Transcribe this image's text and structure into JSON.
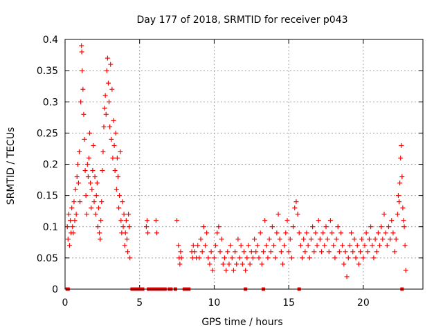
{
  "chart_data": {
    "type": "scatter",
    "title": "Day 177 of 2018, SRMTID for receiver p043",
    "xlabel": "GPS time / hours",
    "ylabel": "SRMTID / TECUs",
    "xlim": [
      0,
      24
    ],
    "ylim": [
      0,
      0.4
    ],
    "xticks": [
      0,
      5,
      10,
      15,
      20
    ],
    "xtick_labels": [
      "0",
      "5",
      "10",
      "15",
      "20"
    ],
    "yticks": [
      0,
      0.05,
      0.1,
      0.15,
      0.2,
      0.25,
      0.3,
      0.35,
      0.4
    ],
    "ytick_labels": [
      "0",
      "0.05",
      "0.1",
      "0.15",
      "0.2",
      "0.25",
      "0.3",
      "0.35",
      "0.4"
    ],
    "grid": true,
    "marker": "+",
    "color": "#ff0000",
    "series": [
      {
        "name": "SRMTID",
        "points": [
          [
            0.15,
            0.1
          ],
          [
            0.2,
            0.08
          ],
          [
            0.25,
            0.12
          ],
          [
            0.3,
            0.07
          ],
          [
            0.35,
            0.11
          ],
          [
            0.4,
            0.09
          ],
          [
            0.45,
            0.13
          ],
          [
            0.5,
            0.1
          ],
          [
            0.55,
            0.09
          ],
          [
            0.6,
            0.14
          ],
          [
            0.65,
            0.11
          ],
          [
            0.7,
            0.16
          ],
          [
            0.75,
            0.12
          ],
          [
            0.8,
            0.18
          ],
          [
            0.85,
            0.2
          ],
          [
            0.9,
            0.17
          ],
          [
            0.95,
            0.22
          ],
          [
            1.0,
            0.14
          ],
          [
            1.05,
            0.3
          ],
          [
            1.1,
            0.39
          ],
          [
            1.12,
            0.38
          ],
          [
            1.15,
            0.35
          ],
          [
            1.2,
            0.32
          ],
          [
            1.25,
            0.28
          ],
          [
            1.3,
            0.24
          ],
          [
            1.35,
            0.19
          ],
          [
            1.4,
            0.15
          ],
          [
            1.45,
            0.12
          ],
          [
            1.5,
            0.2
          ],
          [
            1.55,
            0.18
          ],
          [
            1.6,
            0.21
          ],
          [
            1.65,
            0.25
          ],
          [
            1.7,
            0.17
          ],
          [
            1.75,
            0.13
          ],
          [
            1.8,
            0.16
          ],
          [
            1.85,
            0.19
          ],
          [
            1.9,
            0.23
          ],
          [
            1.95,
            0.14
          ],
          [
            2.0,
            0.18
          ],
          [
            2.05,
            0.12
          ],
          [
            2.1,
            0.15
          ],
          [
            2.15,
            0.17
          ],
          [
            2.2,
            0.1
          ],
          [
            2.25,
            0.13
          ],
          [
            2.3,
            0.09
          ],
          [
            2.35,
            0.08
          ],
          [
            2.4,
            0.11
          ],
          [
            2.45,
            0.14
          ],
          [
            2.5,
            0.19
          ],
          [
            2.55,
            0.22
          ],
          [
            2.6,
            0.26
          ],
          [
            2.65,
            0.29
          ],
          [
            2.7,
            0.31
          ],
          [
            2.75,
            0.28
          ],
          [
            2.8,
            0.35
          ],
          [
            2.85,
            0.37
          ],
          [
            2.9,
            0.33
          ],
          [
            2.95,
            0.3
          ],
          [
            3.0,
            0.26
          ],
          [
            3.05,
            0.36
          ],
          [
            3.1,
            0.24
          ],
          [
            3.15,
            0.32
          ],
          [
            3.2,
            0.21
          ],
          [
            3.25,
            0.27
          ],
          [
            3.3,
            0.23
          ],
          [
            3.35,
            0.19
          ],
          [
            3.4,
            0.25
          ],
          [
            3.45,
            0.16
          ],
          [
            3.5,
            0.21
          ],
          [
            3.55,
            0.18
          ],
          [
            3.6,
            0.13
          ],
          [
            3.65,
            0.15
          ],
          [
            3.7,
            0.22
          ],
          [
            3.75,
            0.11
          ],
          [
            3.8,
            0.09
          ],
          [
            3.85,
            0.14
          ],
          [
            3.9,
            0.1
          ],
          [
            3.95,
            0.12
          ],
          [
            4.0,
            0.07
          ],
          [
            4.05,
            0.09
          ],
          [
            4.1,
            0.11
          ],
          [
            4.15,
            0.08
          ],
          [
            4.2,
            0.06
          ],
          [
            4.25,
            0.12
          ],
          [
            4.3,
            0.1
          ],
          [
            4.35,
            0.05
          ],
          [
            5.45,
            0.1
          ],
          [
            5.5,
            0.11
          ],
          [
            5.55,
            0.09
          ],
          [
            6.1,
            0.11
          ],
          [
            6.15,
            0.09
          ],
          [
            7.5,
            0.11
          ],
          [
            7.6,
            0.07
          ],
          [
            7.65,
            0.05
          ],
          [
            7.7,
            0.04
          ],
          [
            7.75,
            0.06
          ],
          [
            7.8,
            0.05
          ],
          [
            8.5,
            0.06
          ],
          [
            8.55,
            0.05
          ],
          [
            8.6,
            0.07
          ],
          [
            8.7,
            0.06
          ],
          [
            8.8,
            0.05
          ],
          [
            8.9,
            0.07
          ],
          [
            9.0,
            0.05
          ],
          [
            9.1,
            0.08
          ],
          [
            9.2,
            0.06
          ],
          [
            9.3,
            0.1
          ],
          [
            9.4,
            0.07
          ],
          [
            9.5,
            0.09
          ],
          [
            9.6,
            0.05
          ],
          [
            9.7,
            0.04
          ],
          [
            9.8,
            0.06
          ],
          [
            9.9,
            0.03
          ],
          [
            10.0,
            0.05
          ],
          [
            10.1,
            0.07
          ],
          [
            10.2,
            0.09
          ],
          [
            10.3,
            0.1
          ],
          [
            10.4,
            0.06
          ],
          [
            10.5,
            0.08
          ],
          [
            10.6,
            0.04
          ],
          [
            10.7,
            0.05
          ],
          [
            10.8,
            0.03
          ],
          [
            10.9,
            0.06
          ],
          [
            11.0,
            0.04
          ],
          [
            11.1,
            0.07
          ],
          [
            11.2,
            0.05
          ],
          [
            11.3,
            0.03
          ],
          [
            11.4,
            0.06
          ],
          [
            11.5,
            0.04
          ],
          [
            11.6,
            0.08
          ],
          [
            11.7,
            0.05
          ],
          [
            11.8,
            0.07
          ],
          [
            11.9,
            0.04
          ],
          [
            12.0,
            0.06
          ],
          [
            12.1,
            0.03
          ],
          [
            12.2,
            0.05
          ],
          [
            12.3,
            0.07
          ],
          [
            12.4,
            0.04
          ],
          [
            12.5,
            0.06
          ],
          [
            12.6,
            0.05
          ],
          [
            12.7,
            0.08
          ],
          [
            12.8,
            0.06
          ],
          [
            12.9,
            0.07
          ],
          [
            13.0,
            0.05
          ],
          [
            13.1,
            0.09
          ],
          [
            13.2,
            0.04
          ],
          [
            13.3,
            0.06
          ],
          [
            13.4,
            0.11
          ],
          [
            13.5,
            0.07
          ],
          [
            13.6,
            0.05
          ],
          [
            13.7,
            0.08
          ],
          [
            13.8,
            0.06
          ],
          [
            13.9,
            0.1
          ],
          [
            14.0,
            0.07
          ],
          [
            14.1,
            0.05
          ],
          [
            14.2,
            0.09
          ],
          [
            14.3,
            0.12
          ],
          [
            14.4,
            0.08
          ],
          [
            14.5,
            0.06
          ],
          [
            14.6,
            0.04
          ],
          [
            14.7,
            0.07
          ],
          [
            14.8,
            0.09
          ],
          [
            14.9,
            0.11
          ],
          [
            15.0,
            0.06
          ],
          [
            15.1,
            0.08
          ],
          [
            15.2,
            0.05
          ],
          [
            15.3,
            0.1
          ],
          [
            15.4,
            0.13
          ],
          [
            15.5,
            0.14
          ],
          [
            15.6,
            0.12
          ],
          [
            15.7,
            0.09
          ],
          [
            15.8,
            0.07
          ],
          [
            15.9,
            0.05
          ],
          [
            16.0,
            0.08
          ],
          [
            16.1,
            0.06
          ],
          [
            16.2,
            0.09
          ],
          [
            16.3,
            0.07
          ],
          [
            16.4,
            0.05
          ],
          [
            16.5,
            0.08
          ],
          [
            16.6,
            0.1
          ],
          [
            16.7,
            0.06
          ],
          [
            16.8,
            0.09
          ],
          [
            16.9,
            0.07
          ],
          [
            17.0,
            0.11
          ],
          [
            17.1,
            0.08
          ],
          [
            17.2,
            0.06
          ],
          [
            17.3,
            0.09
          ],
          [
            17.4,
            0.07
          ],
          [
            17.5,
            0.1
          ],
          [
            17.6,
            0.08
          ],
          [
            17.7,
            0.06
          ],
          [
            17.8,
            0.11
          ],
          [
            17.9,
            0.09
          ],
          [
            18.0,
            0.07
          ],
          [
            18.1,
            0.05
          ],
          [
            18.2,
            0.08
          ],
          [
            18.3,
            0.1
          ],
          [
            18.4,
            0.06
          ],
          [
            18.5,
            0.09
          ],
          [
            18.6,
            0.07
          ],
          [
            18.7,
            0.04
          ],
          [
            18.8,
            0.06
          ],
          [
            18.9,
            0.02
          ],
          [
            19.0,
            0.05
          ],
          [
            19.1,
            0.07
          ],
          [
            19.2,
            0.09
          ],
          [
            19.3,
            0.06
          ],
          [
            19.4,
            0.08
          ],
          [
            19.5,
            0.05
          ],
          [
            19.6,
            0.07
          ],
          [
            19.7,
            0.04
          ],
          [
            19.8,
            0.06
          ],
          [
            19.9,
            0.08
          ],
          [
            20.0,
            0.05
          ],
          [
            20.1,
            0.07
          ],
          [
            20.2,
            0.09
          ],
          [
            20.3,
            0.06
          ],
          [
            20.4,
            0.08
          ],
          [
            20.5,
            0.1
          ],
          [
            20.6,
            0.07
          ],
          [
            20.7,
            0.05
          ],
          [
            20.8,
            0.08
          ],
          [
            20.9,
            0.06
          ],
          [
            21.0,
            0.09
          ],
          [
            21.1,
            0.07
          ],
          [
            21.2,
            0.1
          ],
          [
            21.3,
            0.08
          ],
          [
            21.4,
            0.12
          ],
          [
            21.5,
            0.09
          ],
          [
            21.6,
            0.07
          ],
          [
            21.7,
            0.1
          ],
          [
            21.8,
            0.08
          ],
          [
            21.9,
            0.11
          ],
          [
            22.0,
            0.09
          ],
          [
            22.1,
            0.06
          ],
          [
            22.2,
            0.08
          ],
          [
            22.3,
            0.12
          ],
          [
            22.35,
            0.15
          ],
          [
            22.4,
            0.14
          ],
          [
            22.45,
            0.17
          ],
          [
            22.5,
            0.21
          ],
          [
            22.55,
            0.23
          ],
          [
            22.6,
            0.18
          ],
          [
            22.65,
            0.13
          ],
          [
            22.7,
            0.11
          ],
          [
            22.75,
            0.1
          ],
          [
            22.8,
            0.07
          ],
          [
            22.85,
            0.03
          ]
        ]
      }
    ],
    "zero_points": [
      0.15,
      0.2,
      4.5,
      4.6,
      4.7,
      4.8,
      4.9,
      5.0,
      5.1,
      5.2,
      5.6,
      5.7,
      5.8,
      5.9,
      6.0,
      6.2,
      6.3,
      6.4,
      6.5,
      6.6,
      6.7,
      7.0,
      7.1,
      7.4,
      8.0,
      8.1,
      8.2,
      8.3,
      12.1,
      13.3,
      15.7,
      22.6
    ]
  }
}
